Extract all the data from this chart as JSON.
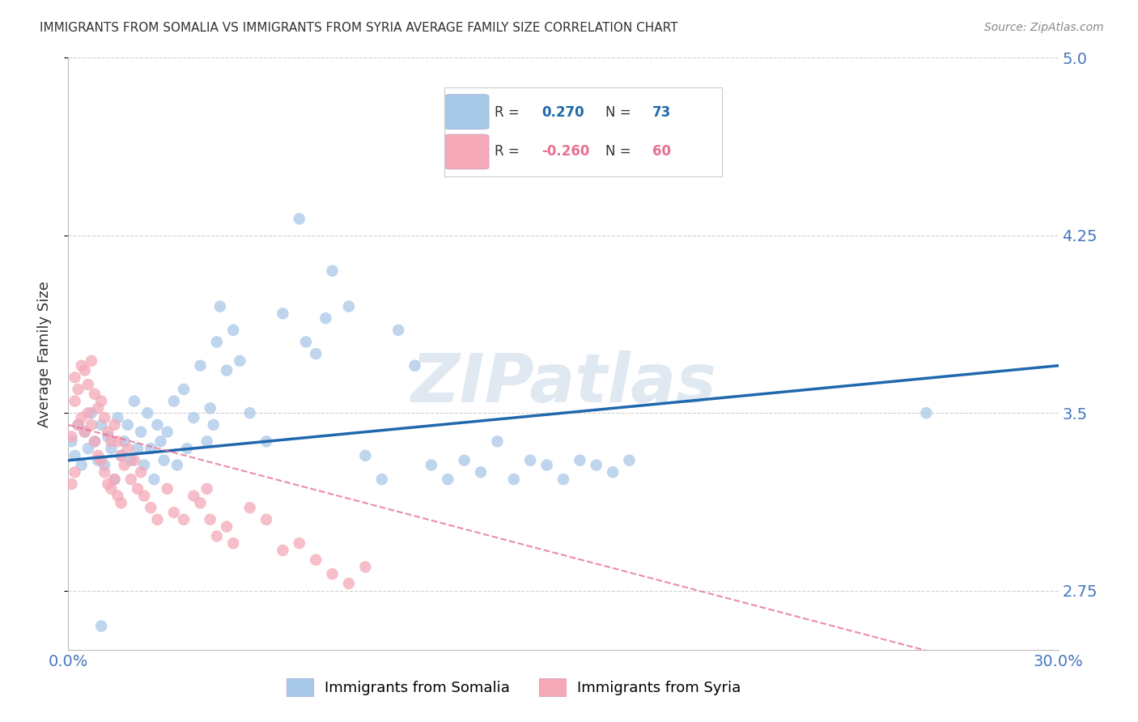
{
  "title": "IMMIGRANTS FROM SOMALIA VS IMMIGRANTS FROM SYRIA AVERAGE FAMILY SIZE CORRELATION CHART",
  "source": "Source: ZipAtlas.com",
  "ylabel": "Average Family Size",
  "xlim": [
    0.0,
    0.3
  ],
  "ylim": [
    2.5,
    5.0
  ],
  "yticks": [
    2.75,
    3.5,
    4.25,
    5.0
  ],
  "xticks": [
    0.0,
    0.05,
    0.1,
    0.15,
    0.2,
    0.25,
    0.3
  ],
  "somalia_color": "#a8c8e8",
  "syria_color": "#f4a8b8",
  "somalia_line_color": "#2068ae",
  "syria_line_color": "#e87090",
  "somalia_label": "Immigrants from Somalia",
  "syria_label": "Immigrants from Syria",
  "watermark": "ZIPatlas",
  "somalia_points": [
    [
      0.001,
      3.38
    ],
    [
      0.002,
      3.32
    ],
    [
      0.003,
      3.45
    ],
    [
      0.004,
      3.28
    ],
    [
      0.005,
      3.42
    ],
    [
      0.006,
      3.35
    ],
    [
      0.007,
      3.5
    ],
    [
      0.008,
      3.38
    ],
    [
      0.009,
      3.3
    ],
    [
      0.01,
      3.45
    ],
    [
      0.011,
      3.28
    ],
    [
      0.012,
      3.4
    ],
    [
      0.013,
      3.35
    ],
    [
      0.014,
      3.22
    ],
    [
      0.015,
      3.48
    ],
    [
      0.016,
      3.32
    ],
    [
      0.017,
      3.38
    ],
    [
      0.018,
      3.45
    ],
    [
      0.019,
      3.3
    ],
    [
      0.02,
      3.55
    ],
    [
      0.021,
      3.35
    ],
    [
      0.022,
      3.42
    ],
    [
      0.023,
      3.28
    ],
    [
      0.024,
      3.5
    ],
    [
      0.025,
      3.35
    ],
    [
      0.026,
      3.22
    ],
    [
      0.027,
      3.45
    ],
    [
      0.028,
      3.38
    ],
    [
      0.029,
      3.3
    ],
    [
      0.03,
      3.42
    ],
    [
      0.032,
      3.55
    ],
    [
      0.033,
      3.28
    ],
    [
      0.035,
      3.6
    ],
    [
      0.036,
      3.35
    ],
    [
      0.038,
      3.48
    ],
    [
      0.04,
      3.7
    ],
    [
      0.042,
      3.38
    ],
    [
      0.043,
      3.52
    ],
    [
      0.044,
      3.45
    ],
    [
      0.045,
      3.8
    ],
    [
      0.046,
      3.95
    ],
    [
      0.048,
      3.68
    ],
    [
      0.05,
      3.85
    ],
    [
      0.052,
      3.72
    ],
    [
      0.055,
      3.5
    ],
    [
      0.06,
      3.38
    ],
    [
      0.065,
      3.92
    ],
    [
      0.07,
      4.32
    ],
    [
      0.072,
      3.8
    ],
    [
      0.075,
      3.75
    ],
    [
      0.078,
      3.9
    ],
    [
      0.08,
      4.1
    ],
    [
      0.085,
      3.95
    ],
    [
      0.09,
      3.32
    ],
    [
      0.095,
      3.22
    ],
    [
      0.1,
      3.85
    ],
    [
      0.105,
      3.7
    ],
    [
      0.11,
      3.28
    ],
    [
      0.115,
      3.22
    ],
    [
      0.12,
      3.3
    ],
    [
      0.125,
      3.25
    ],
    [
      0.13,
      3.38
    ],
    [
      0.135,
      3.22
    ],
    [
      0.14,
      3.3
    ],
    [
      0.145,
      3.28
    ],
    [
      0.15,
      3.22
    ],
    [
      0.155,
      3.3
    ],
    [
      0.16,
      3.28
    ],
    [
      0.165,
      3.25
    ],
    [
      0.17,
      3.3
    ],
    [
      0.01,
      2.6
    ],
    [
      0.26,
      3.5
    ]
  ],
  "syria_points": [
    [
      0.001,
      3.4
    ],
    [
      0.002,
      3.65
    ],
    [
      0.002,
      3.55
    ],
    [
      0.003,
      3.6
    ],
    [
      0.003,
      3.45
    ],
    [
      0.004,
      3.7
    ],
    [
      0.004,
      3.48
    ],
    [
      0.005,
      3.68
    ],
    [
      0.005,
      3.42
    ],
    [
      0.006,
      3.62
    ],
    [
      0.006,
      3.5
    ],
    [
      0.007,
      3.72
    ],
    [
      0.007,
      3.45
    ],
    [
      0.008,
      3.58
    ],
    [
      0.008,
      3.38
    ],
    [
      0.009,
      3.52
    ],
    [
      0.009,
      3.32
    ],
    [
      0.01,
      3.55
    ],
    [
      0.01,
      3.3
    ],
    [
      0.011,
      3.48
    ],
    [
      0.011,
      3.25
    ],
    [
      0.012,
      3.42
    ],
    [
      0.012,
      3.2
    ],
    [
      0.013,
      3.38
    ],
    [
      0.013,
      3.18
    ],
    [
      0.014,
      3.45
    ],
    [
      0.014,
      3.22
    ],
    [
      0.015,
      3.38
    ],
    [
      0.015,
      3.15
    ],
    [
      0.016,
      3.32
    ],
    [
      0.016,
      3.12
    ],
    [
      0.017,
      3.28
    ],
    [
      0.018,
      3.35
    ],
    [
      0.019,
      3.22
    ],
    [
      0.02,
      3.3
    ],
    [
      0.021,
      3.18
    ],
    [
      0.022,
      3.25
    ],
    [
      0.023,
      3.15
    ],
    [
      0.025,
      3.1
    ],
    [
      0.027,
      3.05
    ],
    [
      0.03,
      3.18
    ],
    [
      0.032,
      3.08
    ],
    [
      0.035,
      3.05
    ],
    [
      0.038,
      3.15
    ],
    [
      0.04,
      3.12
    ],
    [
      0.042,
      3.18
    ],
    [
      0.043,
      3.05
    ],
    [
      0.045,
      2.98
    ],
    [
      0.048,
      3.02
    ],
    [
      0.05,
      2.95
    ],
    [
      0.055,
      3.1
    ],
    [
      0.06,
      3.05
    ],
    [
      0.065,
      2.92
    ],
    [
      0.07,
      2.95
    ],
    [
      0.075,
      2.88
    ],
    [
      0.08,
      2.82
    ],
    [
      0.085,
      2.78
    ],
    [
      0.09,
      2.85
    ],
    [
      0.001,
      3.2
    ],
    [
      0.002,
      3.25
    ]
  ],
  "background_color": "#ffffff",
  "grid_color": "#cccccc",
  "title_color": "#333333",
  "tick_color": "#4477bb"
}
